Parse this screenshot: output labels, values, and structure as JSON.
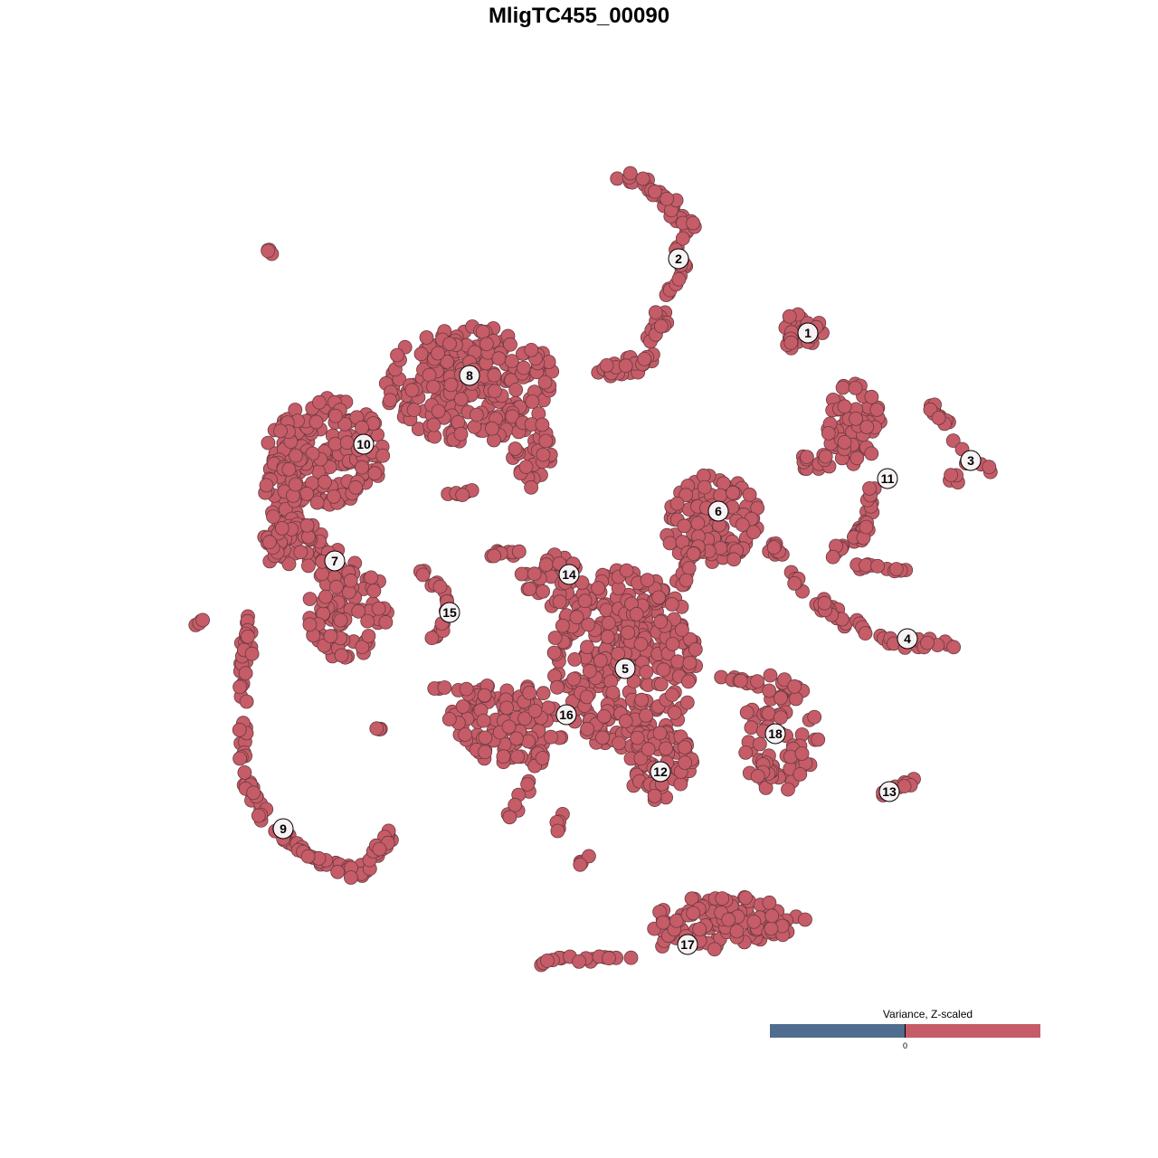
{
  "chart_data": {
    "type": "scatter",
    "title": "MligTC455_00090",
    "xlabel": "",
    "ylabel": "",
    "grid": false,
    "axes_visible": false,
    "point_color": "#c55c67",
    "point_stroke": "#6b3a40",
    "cluster_labels": [
      "1",
      "2",
      "3",
      "4",
      "5",
      "6",
      "7",
      "8",
      "9",
      "10",
      "11",
      "12",
      "13",
      "14",
      "15",
      "16",
      "17",
      "18"
    ],
    "legend": {
      "title": "Variance, Z-scaled",
      "tick_label": "0",
      "low_color": "#506d8f",
      "high_color": "#c55c67",
      "placement": "bottom-right"
    }
  }
}
